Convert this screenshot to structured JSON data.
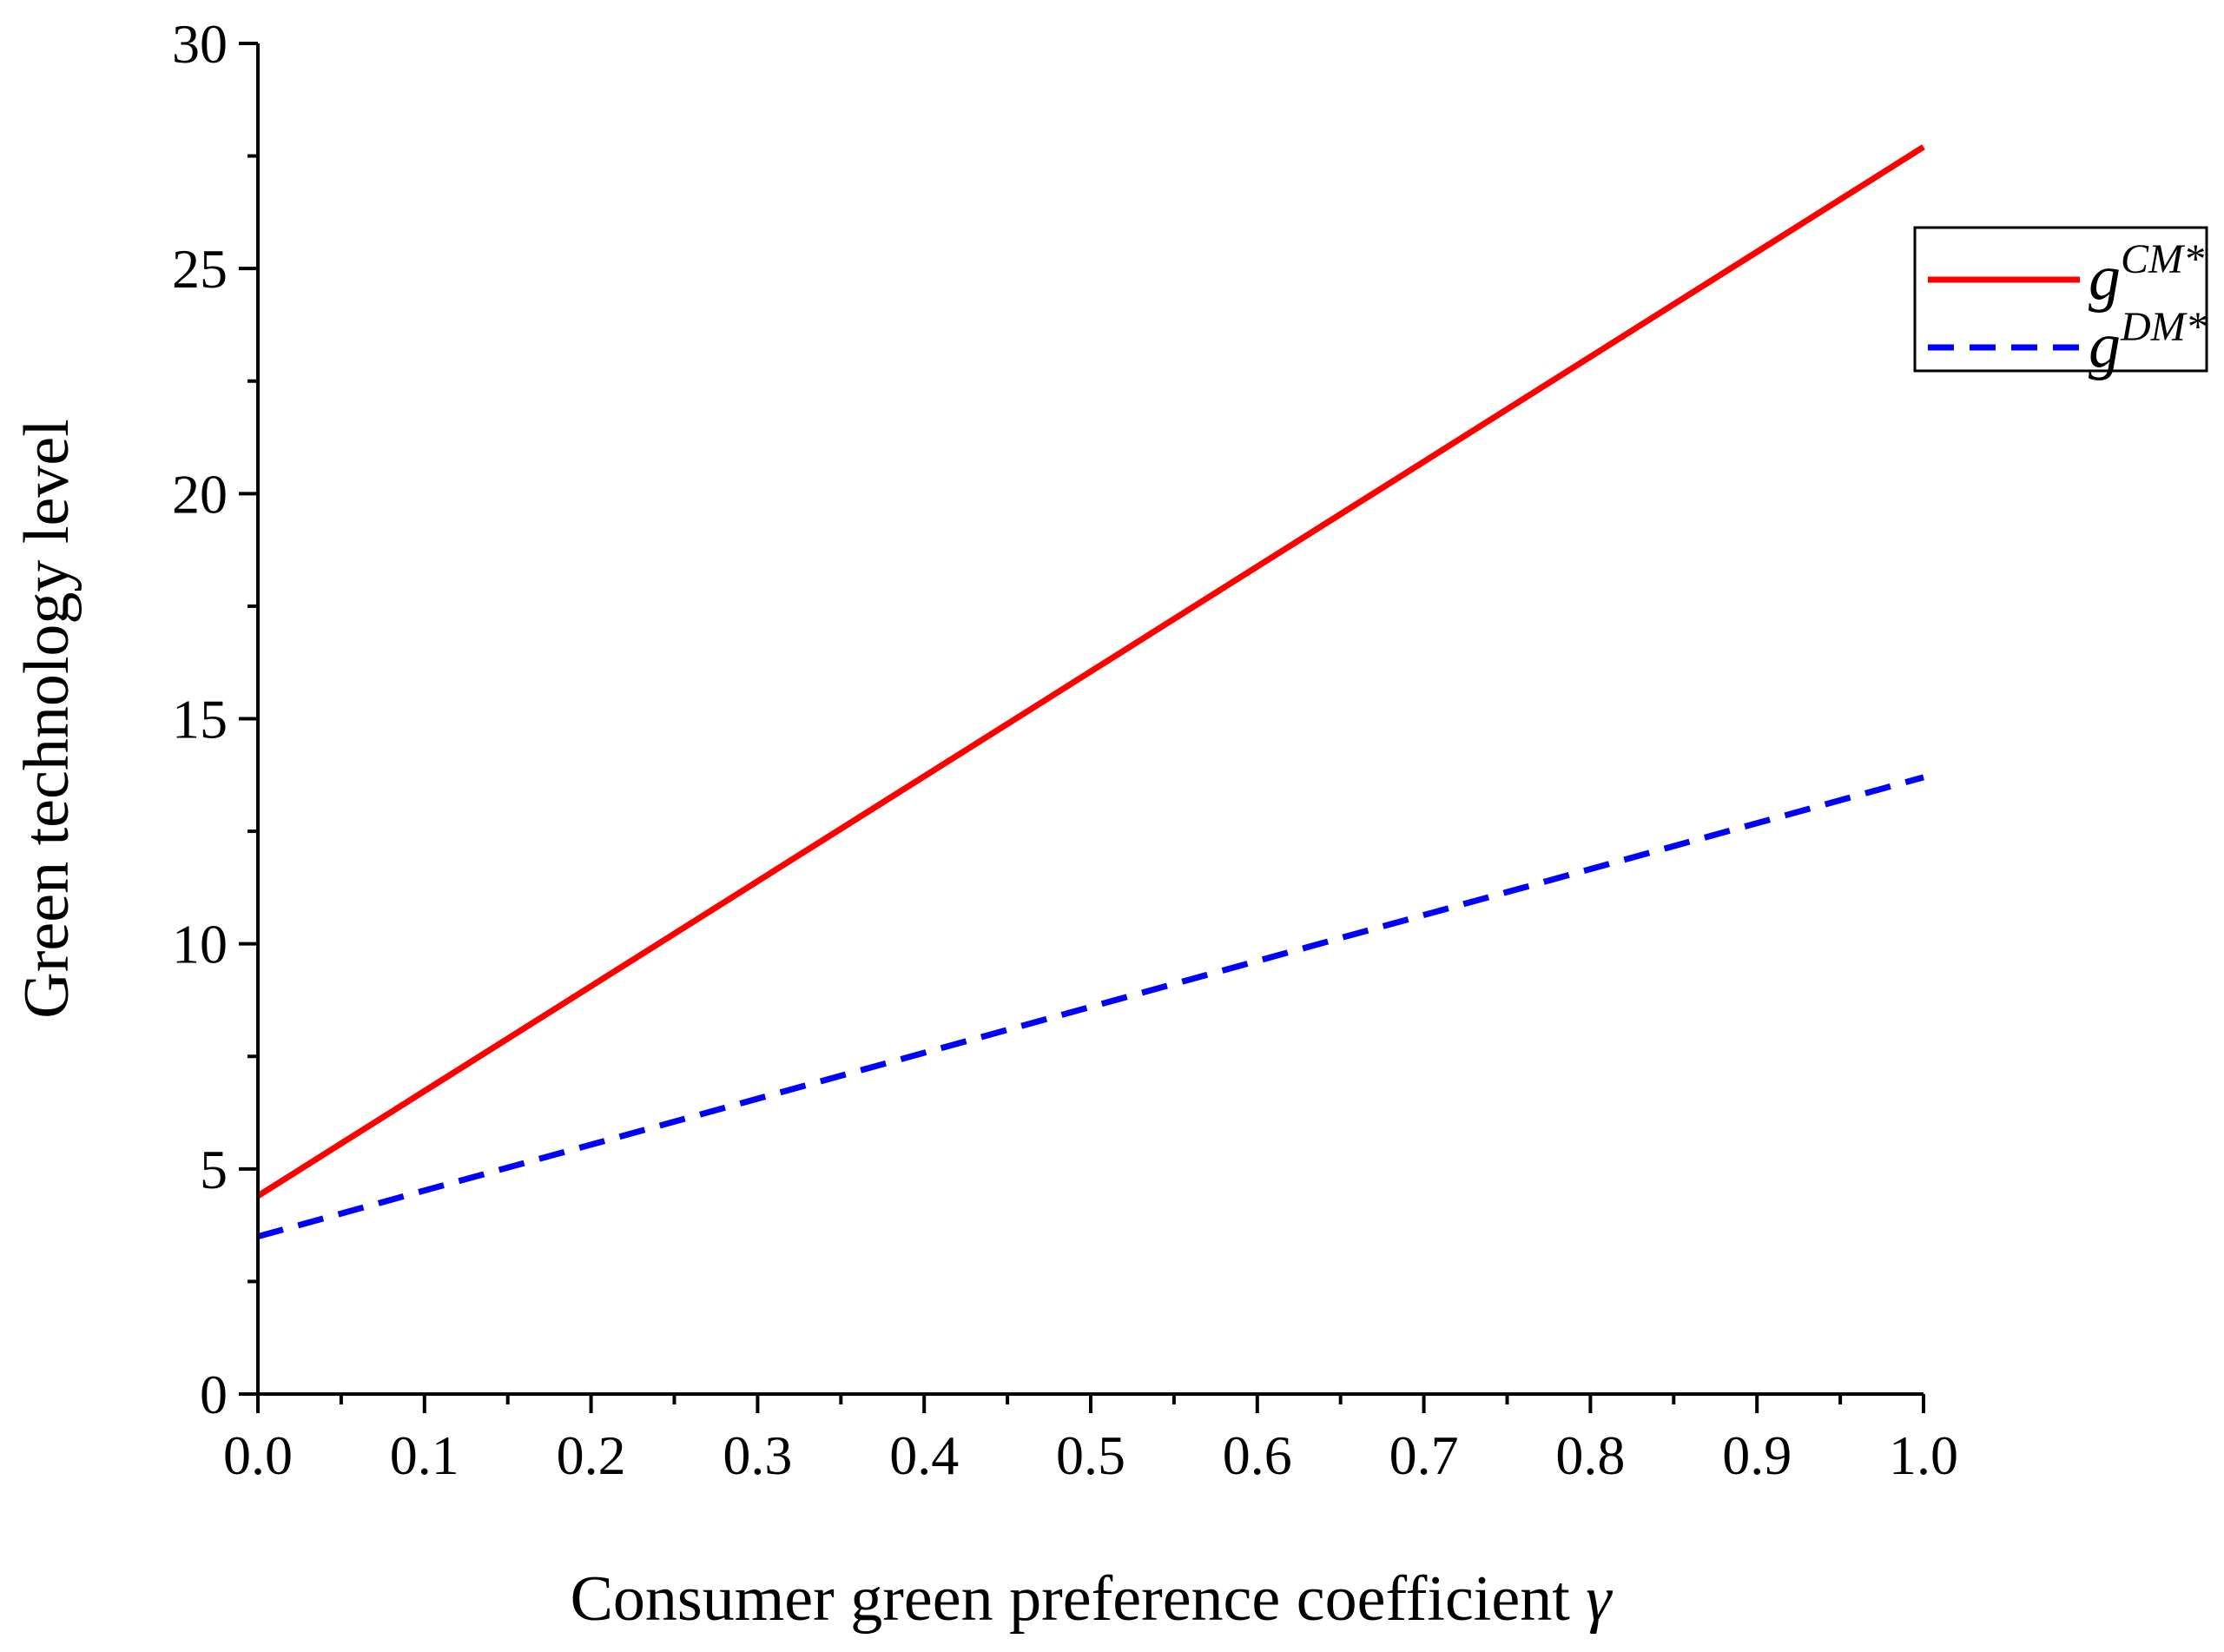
{
  "chart_data": {
    "type": "line",
    "title": "",
    "xlabel": "Consumer green preference coefficient ",
    "xlabel_symbol": "γ",
    "ylabel": "Green technology level",
    "xlim": [
      0,
      1
    ],
    "ylim": [
      0,
      30
    ],
    "x_ticks": [
      "0.0",
      "0.1",
      "0.2",
      "0.3",
      "0.4",
      "0.5",
      "0.6",
      "0.7",
      "0.8",
      "0.9",
      "1.0"
    ],
    "y_ticks": [
      "0",
      "5",
      "10",
      "15",
      "20",
      "25",
      "30"
    ],
    "grid": false,
    "legend_position": "top-right",
    "series": [
      {
        "name": "gCM*",
        "label_base": "g",
        "label_sup": "CM*",
        "color": "#ff0000",
        "style": "solid",
        "x": [
          0.0,
          1.0
        ],
        "y": [
          4.4,
          27.7
        ]
      },
      {
        "name": "gDM*",
        "label_base": "g",
        "label_sup": "DM*",
        "color": "#0000ff",
        "style": "dashed",
        "x": [
          0.0,
          1.0
        ],
        "y": [
          3.5,
          13.7
        ]
      }
    ]
  }
}
